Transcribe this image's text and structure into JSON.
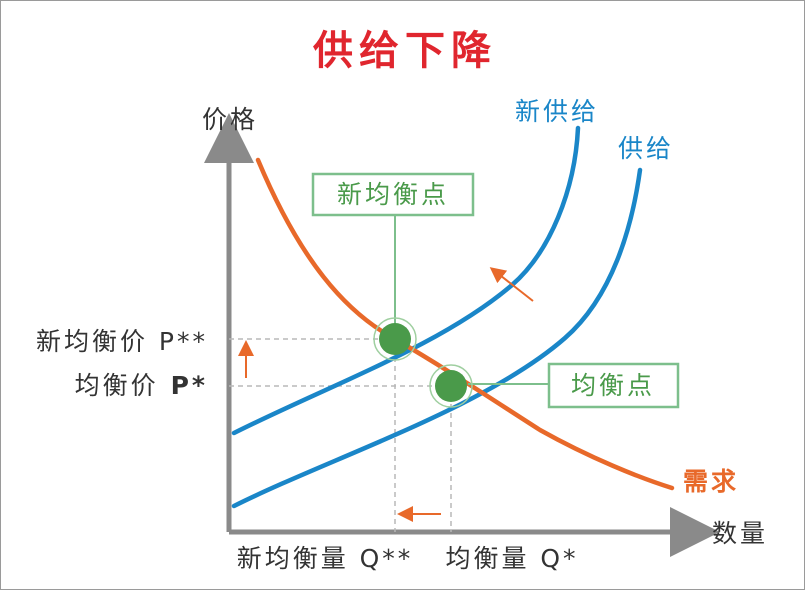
{
  "chart_data": {
    "type": "line",
    "title": "供给下降",
    "xlabel": "数量",
    "ylabel": "价格",
    "series": [
      {
        "name": "新供给",
        "color": "#1a86c8"
      },
      {
        "name": "供给",
        "color": "#1a86c8"
      },
      {
        "name": "需求",
        "color": "#e8692a"
      }
    ],
    "points": [
      {
        "label": "新均衡点",
        "x_label": "新均衡量 Q**",
        "y_label": "新均衡价 P**"
      },
      {
        "label": "均衡点",
        "x_label": "均衡量 Q*",
        "y_label_prefix": "均衡价",
        "y_label_symbol": "P*"
      }
    ],
    "colors": {
      "title": "#e0262e",
      "supply": "#1a86c8",
      "demand": "#e8692a",
      "point": "#4a9a4a",
      "callout_border": "#7dbf8c",
      "callout_text": "#4a9a4a",
      "axis": "#8a8a8a",
      "arrow": "#e8692a",
      "text": "#333333"
    }
  }
}
